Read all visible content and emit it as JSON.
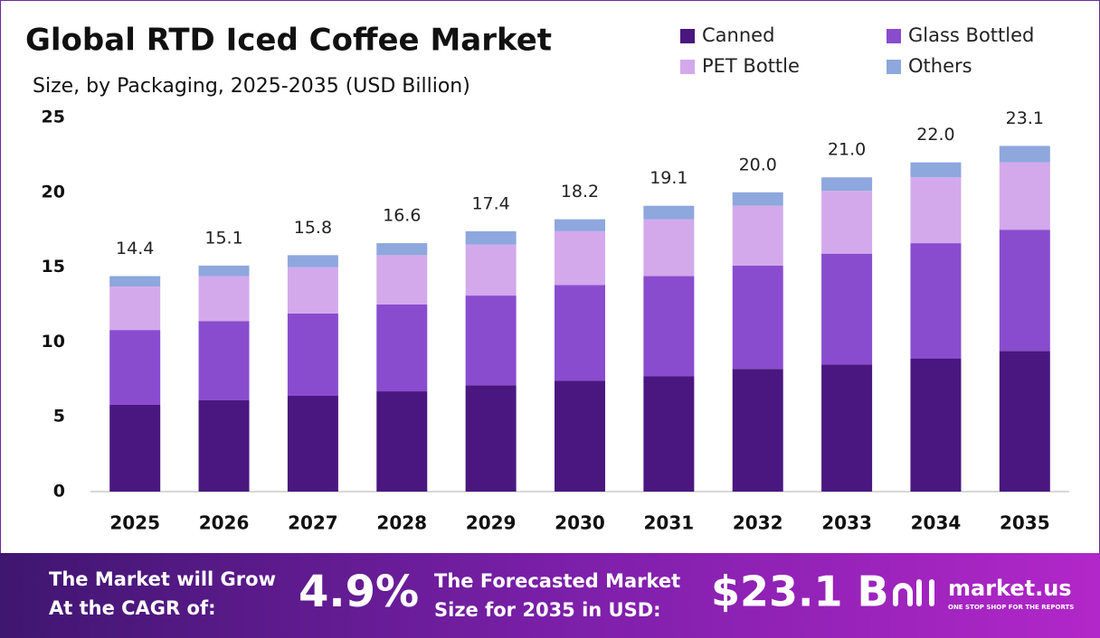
{
  "chart_data": {
    "type": "stacked-bar",
    "title": "Global RTD Iced Coffee Market",
    "subtitle": "Size, by Packaging, 2025-2035 (USD Billion)",
    "categories": [
      "2025",
      "2026",
      "2027",
      "2028",
      "2029",
      "2030",
      "2031",
      "2032",
      "2033",
      "2034",
      "2035"
    ],
    "series": [
      {
        "name": "Canned",
        "color": "#4a1780",
        "values": [
          5.8,
          6.1,
          6.4,
          6.7,
          7.1,
          7.4,
          7.7,
          8.2,
          8.5,
          8.9,
          9.4
        ]
      },
      {
        "name": "Glass Bottled",
        "color": "#8a4cce",
        "values": [
          5.0,
          5.3,
          5.5,
          5.8,
          6.0,
          6.4,
          6.7,
          6.9,
          7.4,
          7.7,
          8.1
        ]
      },
      {
        "name": "PET Bottle",
        "color": "#d3a9ec",
        "values": [
          2.9,
          3.0,
          3.1,
          3.3,
          3.4,
          3.6,
          3.8,
          4.0,
          4.2,
          4.4,
          4.5
        ]
      },
      {
        "name": "Others",
        "color": "#8ea7dd",
        "values": [
          0.7,
          0.7,
          0.8,
          0.8,
          0.9,
          0.8,
          0.9,
          0.9,
          0.9,
          1.0,
          1.1
        ]
      }
    ],
    "totals": {
      "values": [
        14.4,
        15.1,
        15.8,
        16.6,
        17.4,
        18.2,
        19.1,
        20.0,
        21.0,
        22.0,
        23.1
      ],
      "value_labels": [
        "14.4",
        "15.1",
        "15.8",
        "16.6",
        "17.4",
        "18.2",
        "19.1",
        "20.0",
        "21.0",
        "22.0",
        "23.1"
      ]
    },
    "ylim": [
      0,
      25
    ],
    "yticks": [
      0,
      5,
      10,
      15,
      20,
      25
    ],
    "grid": false,
    "legend": "top-right"
  },
  "footer": {
    "cagr_text": [
      "The Market will Grow",
      "At the CAGR of:"
    ],
    "cagr": "4.9%",
    "size_text": [
      "The Forecasted Market",
      "Size for 2035 in USD:"
    ],
    "size": "$23.1 B",
    "brand": "market.us",
    "tagline": "ONE STOP SHOP FOR THE REPORTS"
  }
}
